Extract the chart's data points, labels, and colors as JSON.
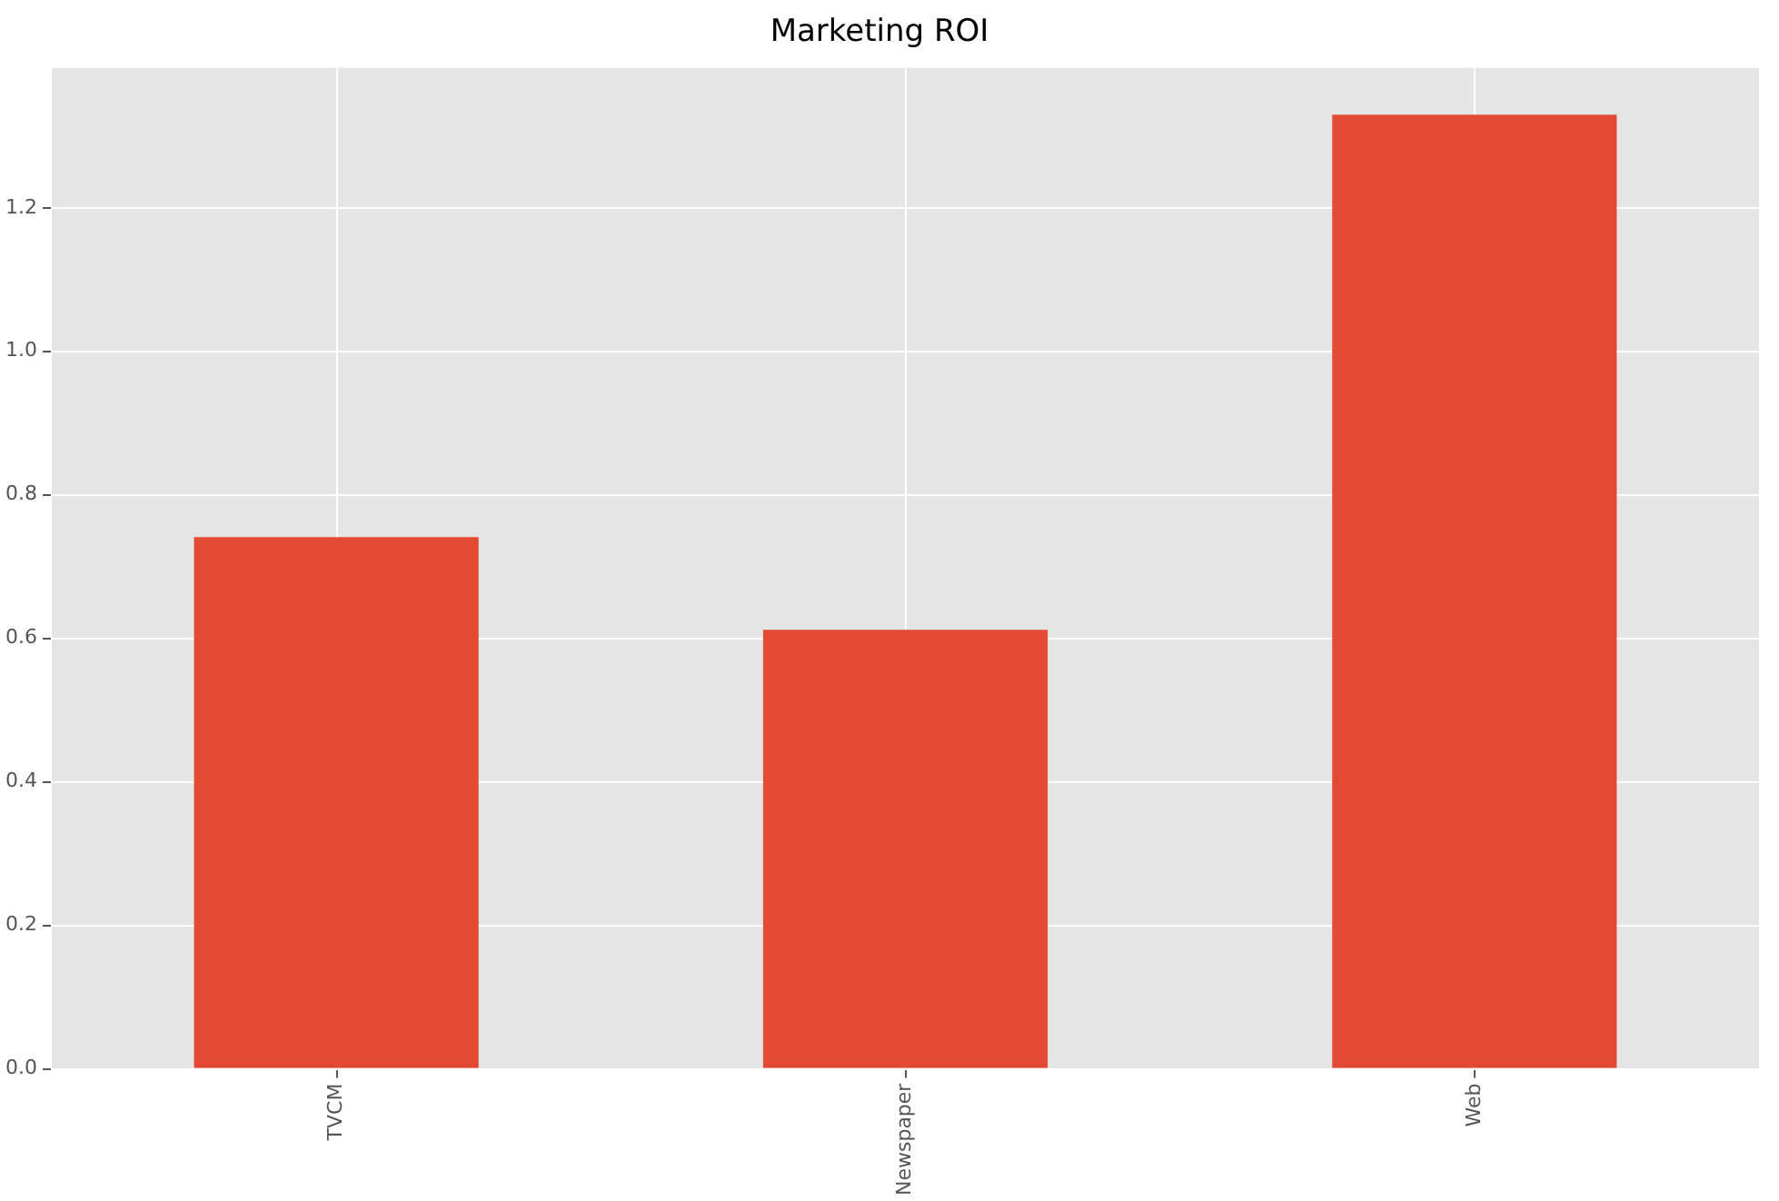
{
  "chart_data": {
    "type": "bar",
    "title": "Marketing ROI",
    "categories": [
      "TVCM",
      "Newspaper",
      "Web"
    ],
    "values": [
      0.741,
      0.612,
      1.33
    ],
    "color": "#e24a33",
    "ylim": [
      0,
      1.395
    ],
    "yticks": [
      {
        "value": 0,
        "label": "0.0"
      },
      {
        "value": 0.2,
        "label": "0.2"
      },
      {
        "value": 0.4,
        "label": "0.4"
      },
      {
        "value": 0.6,
        "label": "0.6"
      },
      {
        "value": 0.8,
        "label": "0.8"
      },
      {
        "value": 1.0,
        "label": "1.0"
      },
      {
        "value": 1.2,
        "label": "1.2"
      }
    ],
    "grid": true
  }
}
